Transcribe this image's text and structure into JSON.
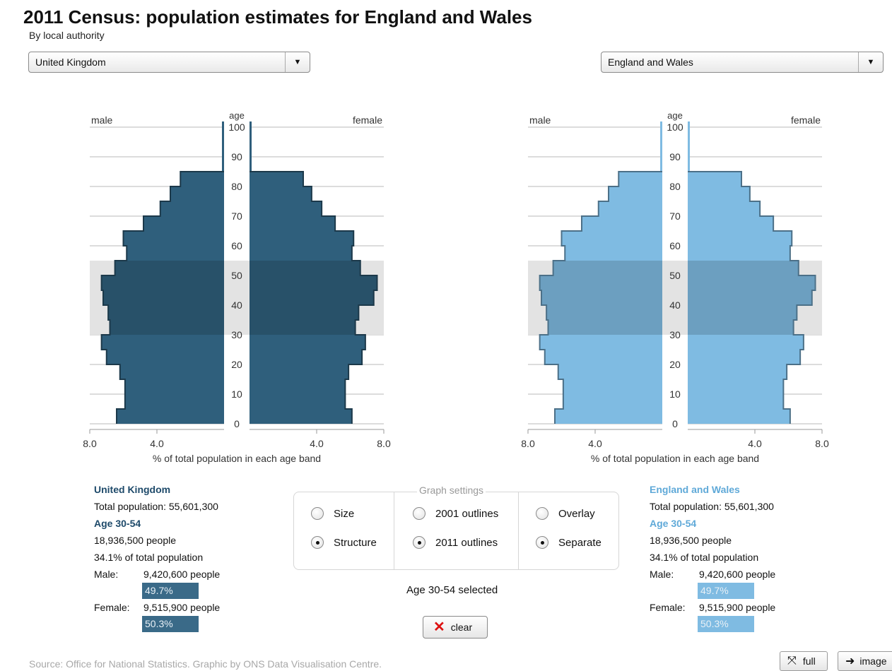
{
  "header": {
    "title": "2011 Census: population estimates for England and Wales",
    "subtitle": "By local authority"
  },
  "selectors": {
    "left": {
      "value": "United Kingdom"
    },
    "right": {
      "value": "England and Wales"
    }
  },
  "chart_data": [
    {
      "type": "bar",
      "name": "left-pyramid",
      "orientation": "population-pyramid",
      "left_label": "male",
      "right_label": "female",
      "center_label": "age",
      "age_ticks": [
        "0",
        "10",
        "20",
        "30",
        "40",
        "50",
        "60",
        "70",
        "80",
        "90",
        "100"
      ],
      "x_ticks": [
        "8.0",
        "4.0",
        "4.0",
        "8.0"
      ],
      "xlabel": "% of total population in each age band",
      "xlim": [
        0,
        8
      ],
      "highlight_band": [
        30,
        55
      ],
      "color": "#2f5f7c",
      "age_bands": [
        "0-4",
        "5-9",
        "10-14",
        "15-19",
        "20-24",
        "25-29",
        "30-34",
        "35-39",
        "40-44",
        "45-49",
        "50-54",
        "55-59",
        "60-64",
        "65-69",
        "70-74",
        "75-79",
        "80-84"
      ],
      "series": [
        {
          "name": "male",
          "values": [
            6.4,
            5.9,
            5.9,
            6.2,
            7.0,
            7.3,
            6.8,
            6.9,
            7.2,
            7.3,
            6.5,
            5.8,
            6.0,
            4.8,
            3.8,
            3.2,
            2.6
          ]
        },
        {
          "name": "female",
          "values": [
            6.1,
            5.7,
            5.7,
            5.9,
            6.7,
            6.9,
            6.3,
            6.5,
            7.4,
            7.6,
            6.6,
            6.1,
            6.2,
            5.1,
            4.3,
            3.7,
            3.2
          ]
        }
      ]
    },
    {
      "type": "bar",
      "name": "right-pyramid",
      "orientation": "population-pyramid",
      "left_label": "male",
      "right_label": "female",
      "center_label": "age",
      "age_ticks": [
        "0",
        "10",
        "20",
        "30",
        "40",
        "50",
        "60",
        "70",
        "80",
        "90",
        "100"
      ],
      "x_ticks": [
        "8.0",
        "4.0",
        "4.0",
        "8.0"
      ],
      "xlabel": "% of total population in each age band",
      "xlim": [
        0,
        8
      ],
      "highlight_band": [
        30,
        55
      ],
      "color": "#7fbbe2",
      "age_bands": [
        "0-4",
        "5-9",
        "10-14",
        "15-19",
        "20-24",
        "25-29",
        "30-34",
        "35-39",
        "40-44",
        "45-49",
        "50-54",
        "55-59",
        "60-64",
        "65-69",
        "70-74",
        "75-79",
        "80-84"
      ],
      "series": [
        {
          "name": "male",
          "values": [
            6.4,
            5.9,
            5.9,
            6.2,
            7.0,
            7.3,
            6.8,
            6.9,
            7.2,
            7.3,
            6.5,
            5.8,
            6.0,
            4.8,
            3.8,
            3.2,
            2.6
          ]
        },
        {
          "name": "female",
          "values": [
            6.1,
            5.7,
            5.7,
            5.9,
            6.7,
            6.9,
            6.3,
            6.5,
            7.4,
            7.6,
            6.6,
            6.1,
            6.2,
            5.1,
            4.3,
            3.7,
            3.2
          ]
        }
      ]
    }
  ],
  "left_info": {
    "name": "United Kingdom",
    "total": "Total population: 55,601,300",
    "age_heading": "Age 30-54",
    "people": "18,936,500 people",
    "percent": "34.1% of total population",
    "male_label": "Male:",
    "male_value": "9,420,600 people",
    "male_pct": "49.7%",
    "female_label": "Female:",
    "female_value": "9,515,900 people",
    "female_pct": "50.3%",
    "color": "#2f5f7c"
  },
  "right_info": {
    "name": "England and Wales",
    "total": "Total population: 55,601,300",
    "age_heading": "Age 30-54",
    "people": "18,936,500 people",
    "percent": "34.1% of total population",
    "male_label": "Male:",
    "male_value": "9,420,600 people",
    "male_pct": "49.7%",
    "female_label": "Female:",
    "female_value": "9,515,900 people",
    "female_pct": "50.3%",
    "color": "#5fa9d8"
  },
  "settings": {
    "legend": "Graph settings",
    "options": {
      "size": "Size",
      "structure": "Structure",
      "outlines_2001": "2001 outlines",
      "outlines_2011": "2011 outlines",
      "overlay": "Overlay",
      "separate": "Separate"
    },
    "selected": {
      "size_structure": "Structure",
      "outlines": "2011 outlines",
      "layout": "Separate"
    }
  },
  "selection": {
    "text": "Age 30-54 selected",
    "clear_label": "clear"
  },
  "footer": {
    "source": "Source: Office for National Statistics. Graphic by ONS Data Visualisation Centre.",
    "full_label": "full",
    "image_label": "image"
  }
}
